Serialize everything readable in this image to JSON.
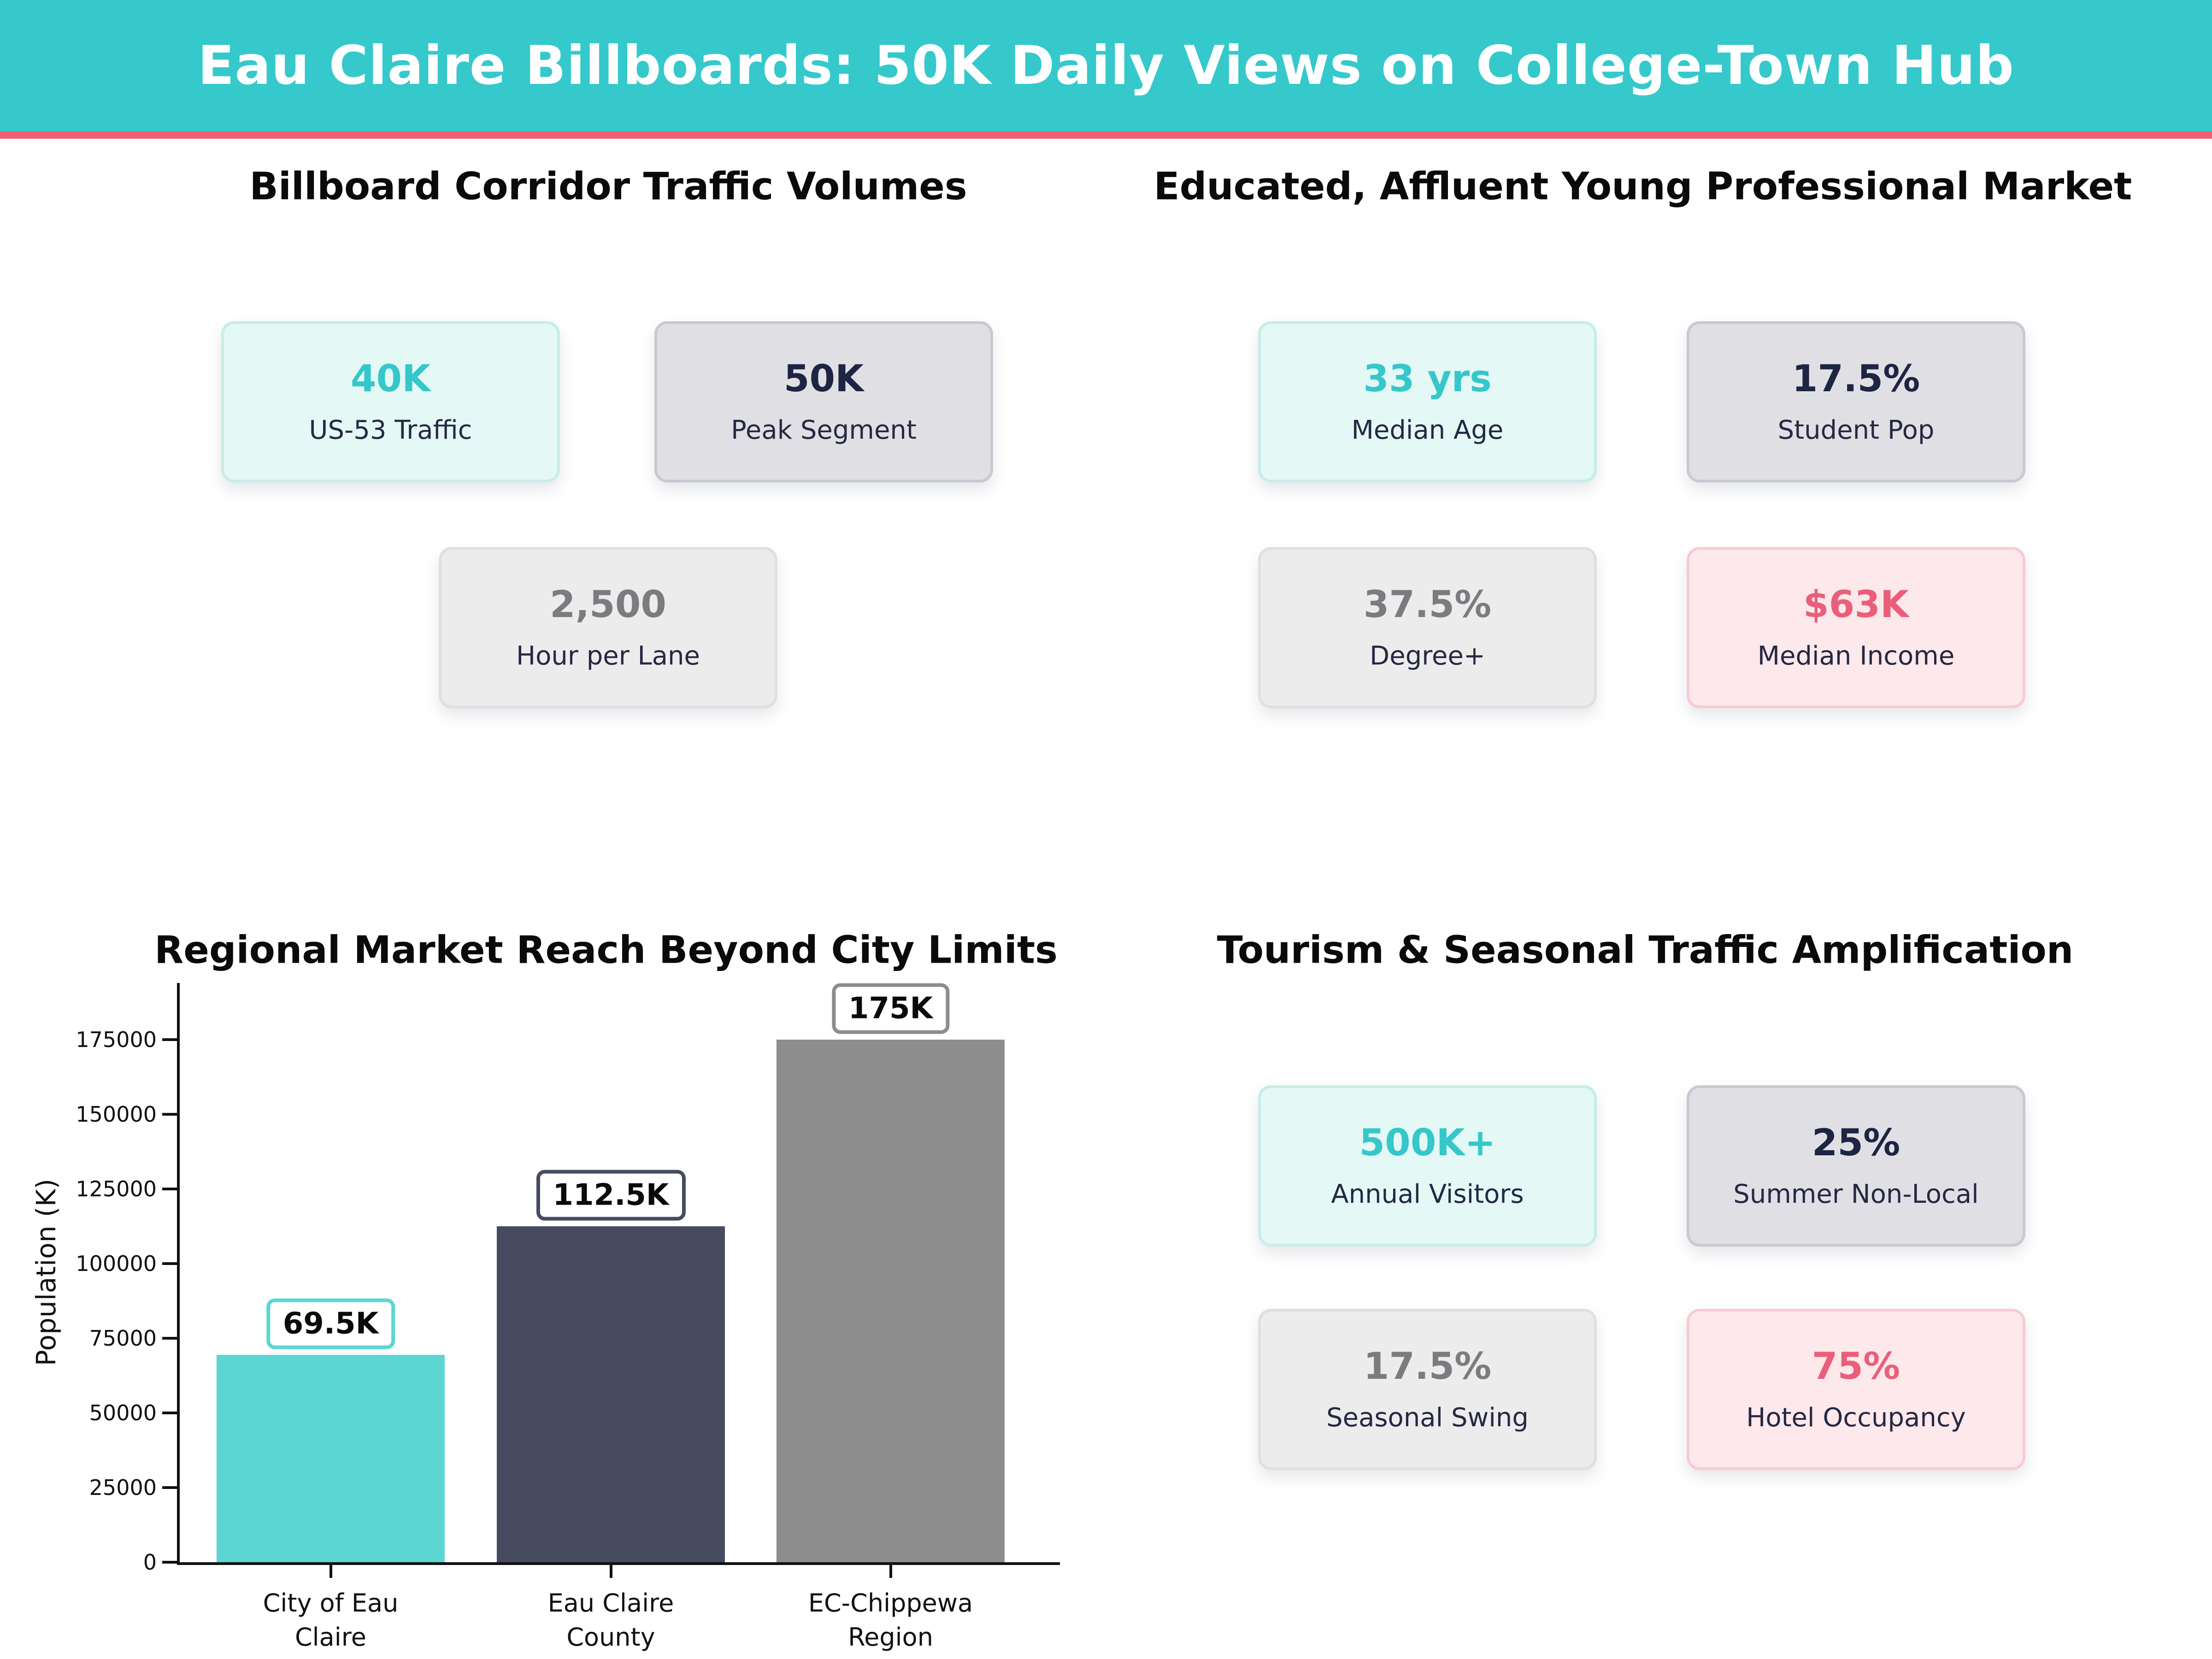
{
  "header": {
    "title": "Eau Claire Billboards: 50K Daily Views on College-Town Hub"
  },
  "sections": {
    "traffic": {
      "title": "Billboard Corridor Traffic Volumes",
      "cards": [
        {
          "value": "40K",
          "label": "US-53 Traffic",
          "style": "mint"
        },
        {
          "value": "50K",
          "label": "Peak Segment",
          "style": "gray"
        },
        {
          "value": "2,500",
          "label": "Hour per Lane",
          "style": "lightgray"
        }
      ]
    },
    "market": {
      "title": "Educated, Affluent Young Professional Market",
      "cards": [
        {
          "value": "33 yrs",
          "label": "Median Age",
          "style": "mint"
        },
        {
          "value": "17.5%",
          "label": "Student Pop",
          "style": "gray"
        },
        {
          "value": "37.5%",
          "label": "Degree+",
          "style": "lightgray"
        },
        {
          "value": "$63K",
          "label": "Median Income",
          "style": "pink"
        }
      ]
    },
    "regional": {
      "title": "Regional Market Reach Beyond City Limits"
    },
    "tourism": {
      "title": "Tourism & Seasonal Traffic Amplification",
      "cards": [
        {
          "value": "500K+",
          "label": "Annual Visitors",
          "style": "mint"
        },
        {
          "value": "25%",
          "label": "Summer Non-Local",
          "style": "gray"
        },
        {
          "value": "17.5%",
          "label": "Seasonal Swing",
          "style": "lightgray"
        },
        {
          "value": "75%",
          "label": "Hotel Occupancy",
          "style": "pink"
        }
      ]
    }
  },
  "chart_data": {
    "type": "bar",
    "title": "Regional Market Reach Beyond City Limits",
    "categories": [
      "City of Eau\nClaire",
      "Eau Claire\nCounty",
      "EC-Chippewa\nRegion"
    ],
    "values": [
      69500,
      112500,
      175000
    ],
    "bar_labels": [
      "69.5K",
      "112.5K",
      "175K"
    ],
    "bar_colors": [
      "#5CD6D3",
      "#464B60",
      "#8D8D8D"
    ],
    "xlabel": "",
    "ylabel": "Population (K)",
    "yticks": [
      0,
      25000,
      50000,
      75000,
      100000,
      125000,
      150000,
      175000
    ],
    "ylim": [
      0,
      194000
    ],
    "grid": false,
    "legend_position": "none"
  },
  "colors": {
    "header_bg": "#35C9CC",
    "header_accent": "#F15F75",
    "teal_value": "#35C7CA",
    "navy_value": "#1E2443",
    "gray_value": "#7A7C7F",
    "pink_value": "#E95F79",
    "label_text": "#262843",
    "axis_text": "#111111"
  }
}
